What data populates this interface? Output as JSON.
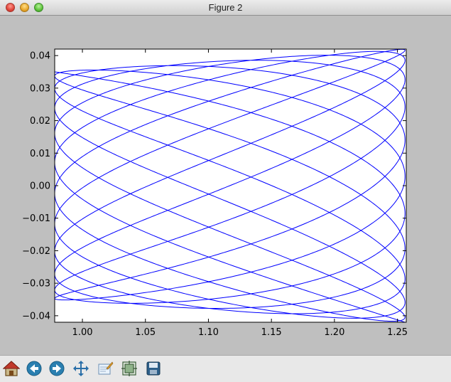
{
  "window": {
    "title": "Figure 2"
  },
  "toolbar": {
    "buttons": [
      {
        "icon": "home-icon",
        "name": "home-button"
      },
      {
        "icon": "back-arrow-icon",
        "name": "back-button"
      },
      {
        "icon": "forward-arrow-icon",
        "name": "forward-button"
      },
      {
        "icon": "pan-icon",
        "name": "pan-button"
      },
      {
        "icon": "zoom-rect-icon",
        "name": "zoom-button"
      },
      {
        "icon": "subplots-icon",
        "name": "subplots-button"
      },
      {
        "icon": "save-disk-icon",
        "name": "save-button"
      }
    ]
  },
  "chart_data": {
    "type": "line",
    "title": "",
    "xlabel": "",
    "ylabel": "",
    "xlim": [
      0.978,
      1.257
    ],
    "ylim": [
      -0.042,
      0.042
    ],
    "x_ticks": [
      1.0,
      1.05,
      1.1,
      1.15,
      1.2,
      1.25
    ],
    "x_tick_labels": [
      "1.00",
      "1.05",
      "1.10",
      "1.15",
      "1.20",
      "1.25"
    ],
    "y_ticks": [
      0.04,
      0.03,
      0.02,
      0.01,
      0.0,
      -0.01,
      -0.02,
      -0.03,
      -0.04
    ],
    "y_tick_labels": [
      "0.04",
      "0.03",
      "0.02",
      "0.01",
      "0.00",
      "−0.01",
      "−0.02",
      "−0.03",
      "−0.04"
    ],
    "grid": false,
    "series": [
      {
        "color": "#0000ff",
        "curve": "lissajous",
        "x_range": [
          0.978,
          1.256
        ],
        "y_amplitude_left": 0.035,
        "y_amplitude_right": 0.042,
        "freq_x": 23,
        "freq_y": 13
      }
    ]
  }
}
